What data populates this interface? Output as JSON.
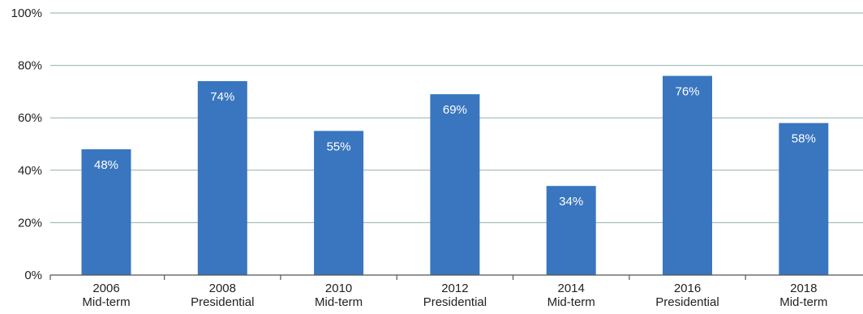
{
  "chart_data": {
    "type": "bar",
    "categories": [
      [
        "2006",
        "Mid-term"
      ],
      [
        "2008",
        "Presidential"
      ],
      [
        "2010",
        "Mid-term"
      ],
      [
        "2012",
        "Presidential"
      ],
      [
        "2014",
        "Mid-term"
      ],
      [
        "2016",
        "Presidential"
      ],
      [
        "2018",
        "Mid-term"
      ]
    ],
    "values": [
      48,
      74,
      55,
      69,
      34,
      76,
      58
    ],
    "value_labels": [
      "48%",
      "74%",
      "55%",
      "69%",
      "34%",
      "76%",
      "58%"
    ],
    "yticks": [
      0,
      20,
      40,
      60,
      80,
      100
    ],
    "ytick_labels": [
      "0%",
      "20%",
      "40%",
      "60%",
      "80%",
      "100%"
    ],
    "ylim": [
      0,
      100
    ],
    "grid": true,
    "colors": {
      "bar": "#3a76bf",
      "grid": "#8fb1ab",
      "axis": "#555555",
      "text": "#222222",
      "bar_label": "#ffffff"
    }
  }
}
